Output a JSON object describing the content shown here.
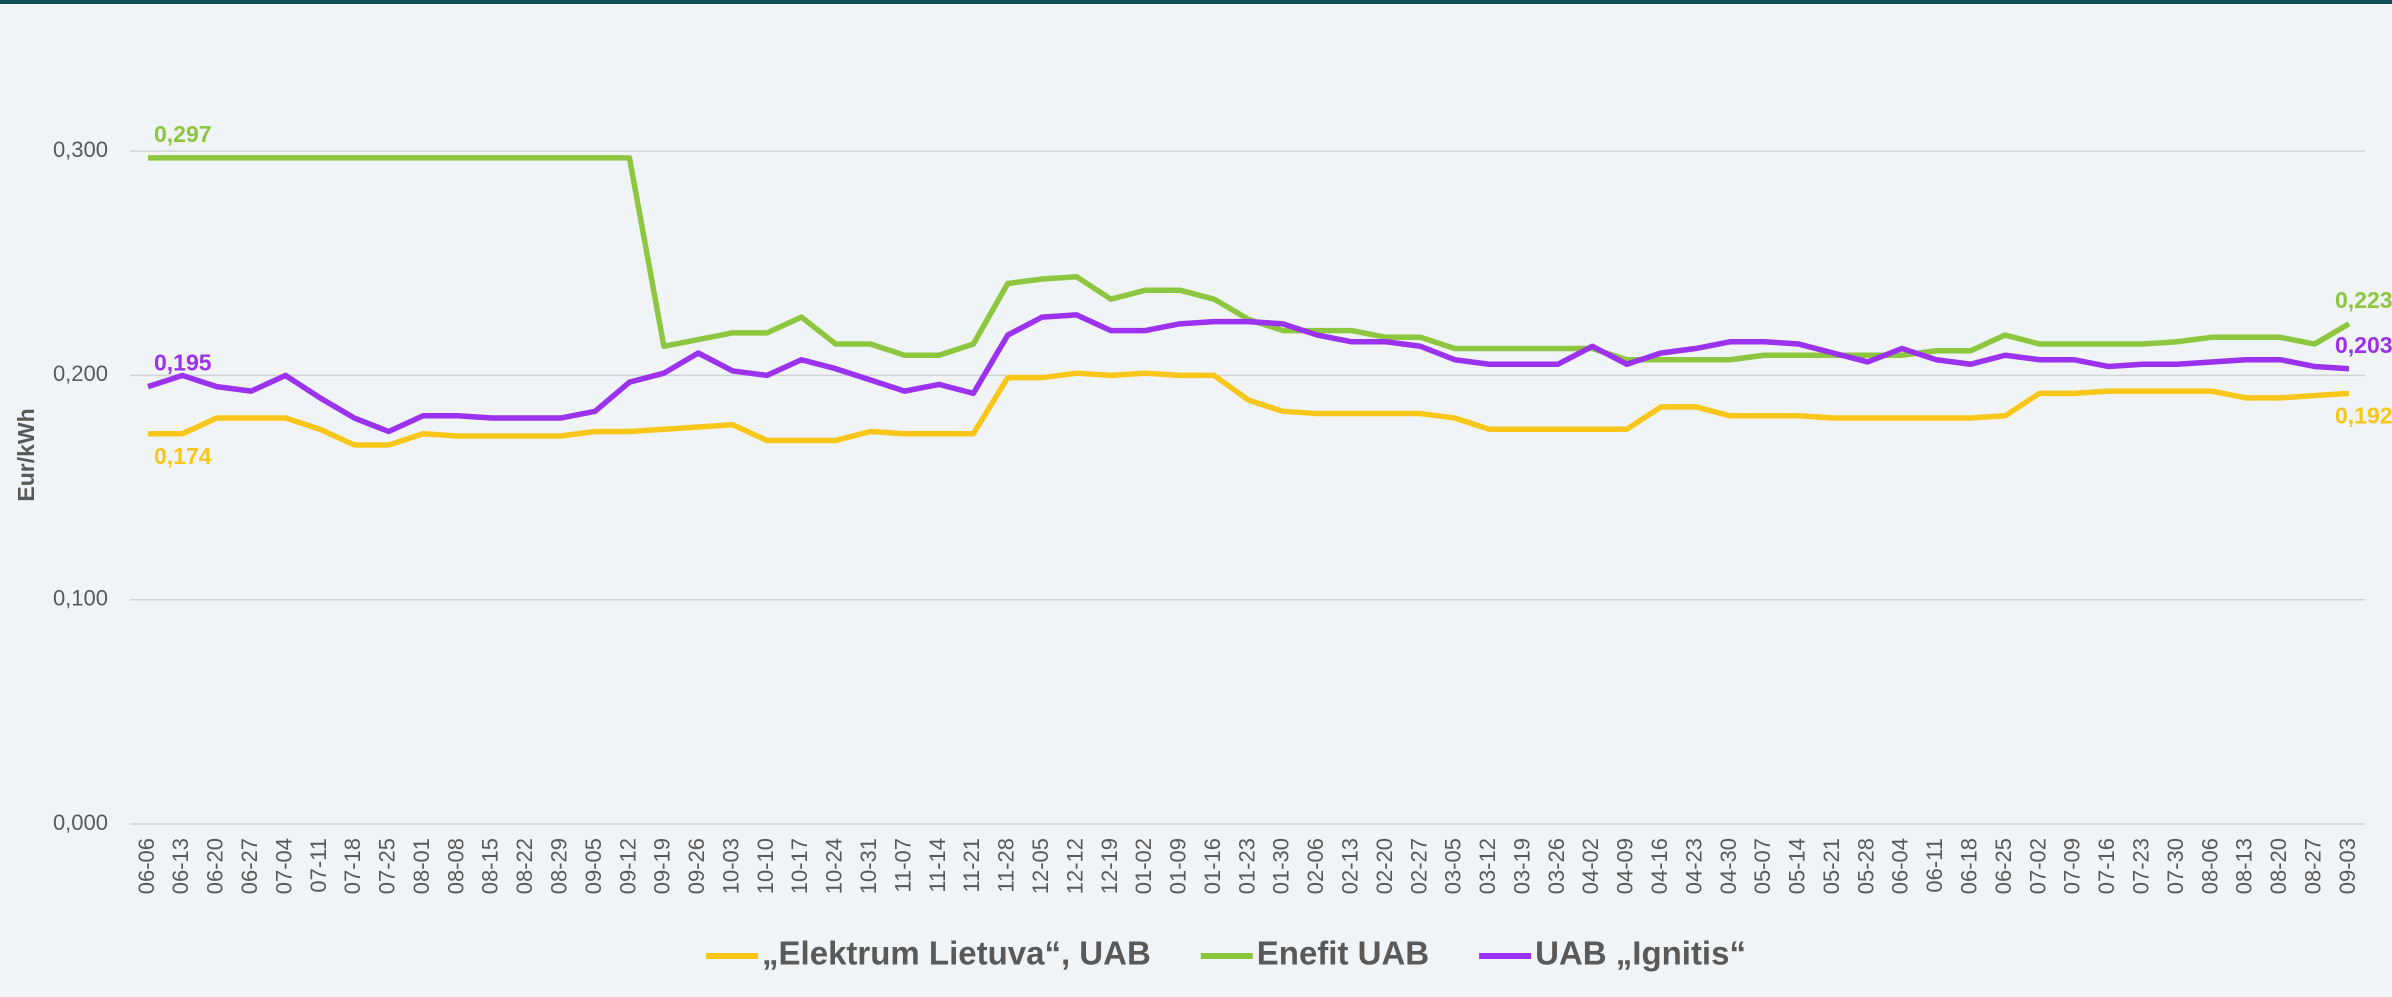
{
  "chart_data": {
    "type": "line",
    "y_axis_label": "Eur/kWh",
    "categories": [
      "06-06",
      "06-13",
      "06-20",
      "06-27",
      "07-04",
      "07-11",
      "07-18",
      "07-25",
      "08-01",
      "08-08",
      "08-15",
      "08-22",
      "08-29",
      "09-05",
      "09-12",
      "09-19",
      "09-26",
      "10-03",
      "10-10",
      "10-17",
      "10-24",
      "10-31",
      "11-07",
      "11-14",
      "11-21",
      "11-28",
      "12-05",
      "12-12",
      "12-19",
      "01-02",
      "01-09",
      "01-16",
      "01-23",
      "01-30",
      "02-06",
      "02-13",
      "02-20",
      "02-27",
      "03-05",
      "03-12",
      "03-19",
      "03-26",
      "04-02",
      "04-09",
      "04-16",
      "04-23",
      "04-30",
      "05-07",
      "05-14",
      "05-21",
      "05-28",
      "06-04",
      "06-11",
      "06-18",
      "06-25",
      "07-02",
      "07-09",
      "07-16",
      "07-23",
      "07-30",
      "08-06",
      "08-13",
      "08-20",
      "08-27",
      "09-03"
    ],
    "series": [
      {
        "name": "„Elektrum Lietuva“, UAB",
        "color": "#f7c619",
        "values": [
          0.174,
          0.174,
          0.181,
          0.181,
          0.181,
          0.176,
          0.169,
          0.169,
          0.174,
          0.173,
          0.173,
          0.173,
          0.173,
          0.175,
          0.175,
          0.176,
          0.177,
          0.178,
          0.171,
          0.171,
          0.171,
          0.175,
          0.174,
          0.174,
          0.174,
          0.199,
          0.199,
          0.201,
          0.2,
          0.201,
          0.2,
          0.2,
          0.189,
          0.184,
          0.183,
          0.183,
          0.183,
          0.183,
          0.181,
          0.176,
          0.176,
          0.176,
          0.176,
          0.176,
          0.186,
          0.186,
          0.182,
          0.182,
          0.182,
          0.181,
          0.181,
          0.181,
          0.181,
          0.181,
          0.182,
          0.192,
          0.192,
          0.193,
          0.193,
          0.193,
          0.193,
          0.19,
          0.19,
          0.191,
          0.192
        ],
        "value_labels": [
          "0,174",
          null,
          null,
          null,
          null,
          null,
          null,
          null,
          null,
          null,
          null,
          null,
          null,
          null,
          null,
          null,
          null,
          null,
          null,
          null,
          null,
          null,
          null,
          null,
          null,
          null,
          null,
          null,
          null,
          null,
          null,
          null,
          null,
          null,
          null,
          null,
          null,
          null,
          null,
          null,
          null,
          null,
          null,
          null,
          null,
          null,
          null,
          null,
          null,
          null,
          null,
          null,
          null,
          null,
          null,
          null,
          null,
          null,
          null,
          null,
          null,
          null,
          null,
          null,
          "0,192"
        ]
      },
      {
        "name": "Enefit UAB",
        "color": "#8dc63f",
        "values": [
          0.297,
          0.297,
          0.297,
          0.297,
          0.297,
          0.297,
          0.297,
          0.297,
          0.297,
          0.297,
          0.297,
          0.297,
          0.297,
          0.297,
          0.297,
          0.213,
          0.216,
          0.219,
          0.219,
          0.226,
          0.214,
          0.214,
          0.209,
          0.209,
          0.214,
          0.241,
          0.243,
          0.244,
          0.234,
          0.238,
          0.238,
          0.234,
          0.225,
          0.22,
          0.22,
          0.22,
          0.217,
          0.217,
          0.212,
          0.212,
          0.212,
          0.212,
          0.212,
          0.207,
          0.207,
          0.207,
          0.207,
          0.209,
          0.209,
          0.209,
          0.209,
          0.209,
          0.211,
          0.211,
          0.218,
          0.214,
          0.214,
          0.214,
          0.214,
          0.215,
          0.217,
          0.217,
          0.217,
          0.214,
          0.223
        ],
        "value_labels": [
          "0,297",
          null,
          null,
          null,
          null,
          null,
          null,
          null,
          null,
          null,
          null,
          null,
          null,
          null,
          null,
          null,
          null,
          null,
          null,
          null,
          null,
          null,
          null,
          null,
          null,
          null,
          null,
          null,
          null,
          null,
          null,
          null,
          null,
          null,
          null,
          null,
          null,
          null,
          null,
          null,
          null,
          null,
          null,
          null,
          null,
          null,
          null,
          null,
          null,
          null,
          null,
          null,
          null,
          null,
          null,
          null,
          null,
          null,
          null,
          null,
          null,
          null,
          null,
          null,
          "0,223"
        ]
      },
      {
        "name": "UAB „Ignitis“",
        "color": "#9a32ef",
        "values": [
          0.195,
          0.2,
          0.195,
          0.193,
          0.2,
          0.19,
          0.181,
          0.175,
          0.182,
          0.182,
          0.181,
          0.181,
          0.181,
          0.184,
          0.197,
          0.201,
          0.21,
          0.202,
          0.2,
          0.207,
          0.203,
          0.198,
          0.193,
          0.196,
          0.192,
          0.218,
          0.226,
          0.227,
          0.22,
          0.22,
          0.223,
          0.224,
          0.224,
          0.223,
          0.218,
          0.215,
          0.215,
          0.213,
          0.207,
          0.205,
          0.205,
          0.205,
          0.213,
          0.205,
          0.21,
          0.212,
          0.215,
          0.215,
          0.214,
          0.21,
          0.206,
          0.212,
          0.207,
          0.205,
          0.209,
          0.207,
          0.207,
          0.204,
          0.205,
          0.205,
          0.206,
          0.207,
          0.207,
          0.204,
          0.203
        ],
        "value_labels": [
          "0,195",
          null,
          null,
          null,
          null,
          null,
          null,
          null,
          null,
          null,
          null,
          null,
          null,
          null,
          null,
          null,
          null,
          null,
          null,
          null,
          null,
          null,
          null,
          null,
          null,
          null,
          null,
          null,
          null,
          null,
          null,
          null,
          null,
          null,
          null,
          null,
          null,
          null,
          null,
          null,
          null,
          null,
          null,
          null,
          null,
          null,
          null,
          null,
          null,
          null,
          null,
          null,
          null,
          null,
          null,
          null,
          null,
          null,
          null,
          null,
          null,
          null,
          null,
          null,
          "0,203"
        ]
      }
    ],
    "ylim": [
      0,
      0.35
    ],
    "yticks": [
      {
        "value": 0,
        "label": "0,000"
      },
      {
        "value": 0.1,
        "label": "0,100"
      },
      {
        "value": 0.2,
        "label": "0,200"
      },
      {
        "value": 0.3,
        "label": "0,300"
      }
    ],
    "grid": true,
    "legend": "bottom"
  }
}
